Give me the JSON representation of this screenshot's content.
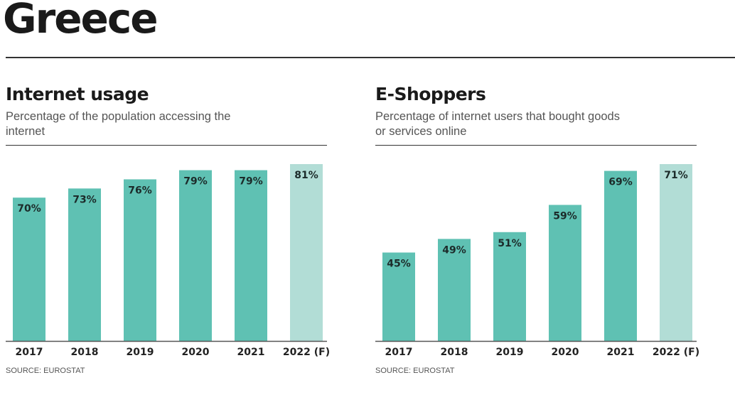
{
  "page_title": "Greece",
  "colors": {
    "bar": "#5fc1b3",
    "forecast_bar": "#b2ddd6",
    "label": "#1c2b2a"
  },
  "chart_data": [
    {
      "type": "bar",
      "title": "Internet usage",
      "subtitle": "Percentage of the population accessing the internet",
      "categories": [
        "2017",
        "2018",
        "2019",
        "2020",
        "2021",
        "2022 (F)"
      ],
      "values": [
        70,
        73,
        76,
        79,
        79,
        81
      ],
      "data_labels": [
        "70%",
        "73%",
        "76%",
        "79%",
        "79%",
        "81%"
      ],
      "forecast": [
        false,
        false,
        false,
        false,
        false,
        true
      ],
      "ylim": [
        23,
        81
      ],
      "grid": false,
      "source": "SOURCE: EUROSTAT"
    },
    {
      "type": "bar",
      "title": "E-Shoppers",
      "subtitle": "Percentage of internet users that bought goods or services online",
      "categories": [
        "2017",
        "2018",
        "2019",
        "2020",
        "2021",
        "2022 (F)"
      ],
      "values": [
        45,
        49,
        51,
        59,
        69,
        71
      ],
      "data_labels": [
        "45%",
        "49%",
        "51%",
        "59%",
        "69%",
        "71%"
      ],
      "forecast": [
        false,
        false,
        false,
        false,
        false,
        true
      ],
      "ylim": [
        19,
        71
      ],
      "grid": false,
      "source": "SOURCE: EUROSTAT"
    }
  ]
}
